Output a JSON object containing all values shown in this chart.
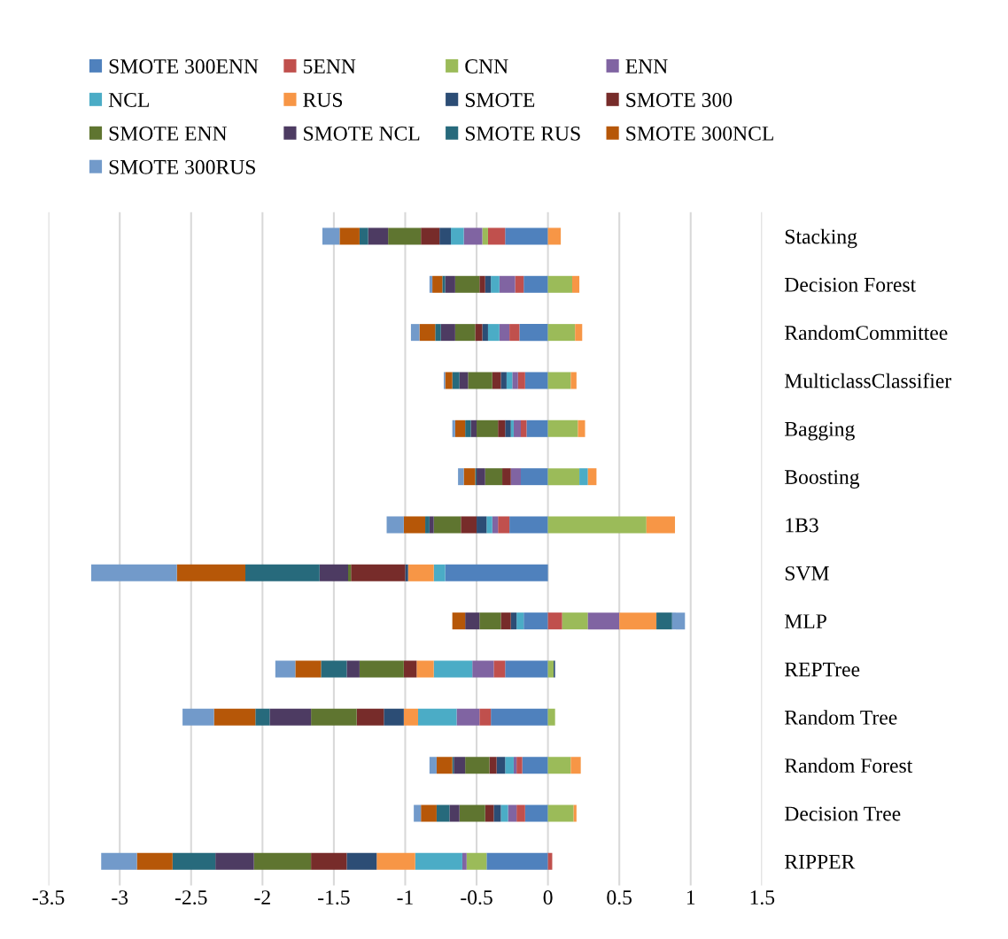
{
  "chart_data": {
    "type": "bar",
    "orientation": "horizontal",
    "stacked": true,
    "categories": [
      "Stacking",
      "Decision Forest",
      "RandomCommittee",
      "MulticlassClassifier",
      "Bagging",
      "Boosting",
      "1B3",
      "SVM",
      "MLP",
      "REPTree",
      "Random Tree",
      "Random Forest",
      "Decision Tree",
      "RIPPER"
    ],
    "series": [
      {
        "name": "SMOTE 300ENN",
        "color": "#4f81bd",
        "values": [
          -0.3,
          -0.17,
          -0.2,
          -0.16,
          -0.15,
          -0.19,
          -0.27,
          -0.72,
          -0.17,
          -0.3,
          -0.4,
          -0.18,
          -0.16,
          -0.43
        ]
      },
      {
        "name": "5ENN",
        "color": "#c0504d",
        "values": [
          -0.12,
          -0.06,
          -0.07,
          -0.05,
          -0.04,
          0,
          -0.08,
          0,
          0.1,
          -0.08,
          -0.08,
          -0.04,
          -0.06,
          0.03
        ]
      },
      {
        "name": "CNN",
        "color": "#9bbb59",
        "values": [
          -0.04,
          0.17,
          0.19,
          0.16,
          0.21,
          0.22,
          0.69,
          0,
          0.18,
          0.04,
          0.05,
          0.16,
          0.18,
          -0.14
        ]
      },
      {
        "name": "ENN",
        "color": "#8064a2",
        "values": [
          -0.13,
          -0.11,
          -0.07,
          -0.04,
          -0.05,
          -0.07,
          -0.04,
          0,
          0.22,
          -0.15,
          -0.16,
          -0.02,
          -0.06,
          -0.03
        ]
      },
      {
        "name": "NCL",
        "color": "#4bacc6",
        "values": [
          -0.09,
          -0.06,
          -0.08,
          -0.04,
          -0.02,
          0.06,
          -0.04,
          -0.08,
          -0.05,
          -0.27,
          -0.27,
          -0.06,
          -0.05,
          -0.33
        ]
      },
      {
        "name": "RUS",
        "color": "#f79646",
        "values": [
          0.09,
          0.05,
          0.05,
          0.04,
          0.05,
          0.06,
          0.2,
          -0.18,
          0.26,
          -0.12,
          -0.1,
          0.07,
          0.02,
          -0.27
        ]
      },
      {
        "name": "SMOTE",
        "color": "#2c4d75",
        "values": [
          -0.08,
          -0.04,
          -0.04,
          -0.04,
          -0.04,
          0,
          -0.07,
          -0.02,
          -0.04,
          0.01,
          -0.14,
          -0.06,
          -0.05,
          -0.21
        ]
      },
      {
        "name": "SMOTE 300",
        "color": "#772c2a",
        "values": [
          -0.13,
          -0.04,
          -0.05,
          -0.06,
          -0.05,
          -0.06,
          -0.11,
          -0.38,
          -0.07,
          -0.09,
          -0.19,
          -0.05,
          -0.06,
          -0.25
        ]
      },
      {
        "name": "SMOTE ENN",
        "color": "#5f7530",
        "values": [
          -0.23,
          -0.17,
          -0.14,
          -0.17,
          -0.15,
          -0.12,
          -0.19,
          -0.02,
          -0.15,
          -0.31,
          -0.32,
          -0.17,
          -0.18,
          -0.4
        ]
      },
      {
        "name": "SMOTE NCL",
        "color": "#4d3b62",
        "values": [
          -0.14,
          -0.07,
          -0.1,
          -0.06,
          -0.04,
          -0.06,
          -0.03,
          -0.2,
          -0.1,
          -0.09,
          -0.29,
          -0.08,
          -0.07,
          -0.27
        ]
      },
      {
        "name": "SMOTE RUS",
        "color": "#276a7c",
        "values": [
          -0.06,
          -0.02,
          -0.04,
          -0.05,
          -0.04,
          -0.01,
          -0.03,
          -0.52,
          0.11,
          -0.18,
          -0.1,
          -0.01,
          -0.09,
          -0.3
        ]
      },
      {
        "name": "SMOTE 300NCL",
        "color": "#b65708",
        "values": [
          -0.14,
          -0.07,
          -0.11,
          -0.05,
          -0.07,
          -0.08,
          -0.15,
          -0.48,
          -0.09,
          -0.18,
          -0.29,
          -0.11,
          -0.11,
          -0.25
        ]
      },
      {
        "name": "SMOTE 300RUS",
        "color": "#729aca",
        "values": [
          -0.12,
          -0.02,
          -0.06,
          -0.01,
          -0.02,
          -0.04,
          -0.12,
          -0.6,
          0.09,
          -0.14,
          -0.22,
          -0.05,
          -0.05,
          -0.25
        ]
      }
    ],
    "xlim": [
      -3.5,
      1.5
    ],
    "xticks": [
      -3.5,
      -3,
      -2.5,
      -2,
      -1.5,
      -1,
      -0.5,
      0,
      0.5,
      1,
      1.5
    ],
    "grid": "x",
    "legend": "top"
  }
}
